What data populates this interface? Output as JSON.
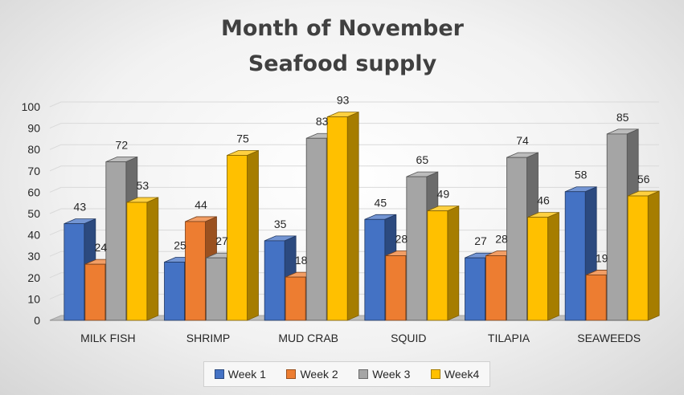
{
  "chart_data": {
    "type": "bar",
    "title": [
      "Month of November",
      "Seafood supply"
    ],
    "categories": [
      "MILK FISH",
      "SHRIMP",
      "MUD CRAB",
      "SQUID",
      "TILAPIA",
      "SEAWEEDS"
    ],
    "series": [
      {
        "name": "Week 1",
        "values": [
          43,
          25,
          35,
          45,
          27,
          58
        ],
        "color": "#4472C4"
      },
      {
        "name": "Week 2",
        "values": [
          24,
          44,
          18,
          28,
          28,
          19
        ],
        "color": "#ED7D31"
      },
      {
        "name": "Week 3",
        "values": [
          72,
          27,
          83,
          65,
          74,
          85
        ],
        "color": "#A5A5A5"
      },
      {
        "name": "Week4",
        "values": [
          53,
          75,
          93,
          49,
          46,
          56
        ],
        "color": "#FFC000"
      }
    ],
    "yticks": [
      0,
      10,
      20,
      30,
      40,
      50,
      60,
      70,
      80,
      90,
      100
    ],
    "ylim": [
      0,
      100
    ],
    "xlabel": "",
    "ylabel": "",
    "grid": true,
    "legend": "bottom",
    "style": "3d-clustered-bar"
  }
}
